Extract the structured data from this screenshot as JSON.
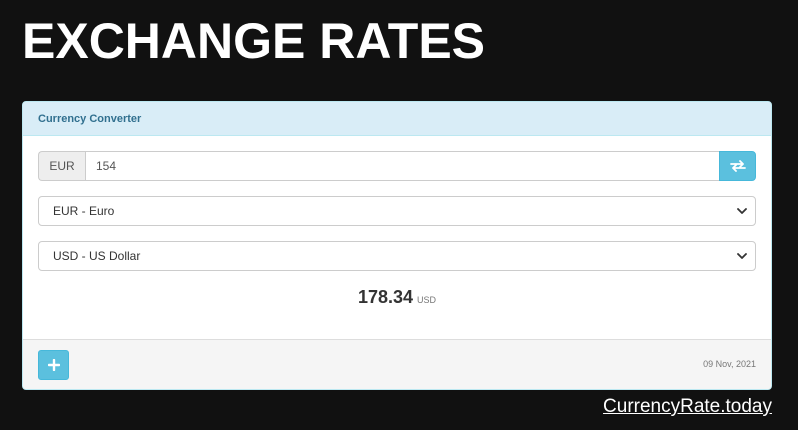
{
  "header": {
    "title": "EXCHANGE RATES"
  },
  "converter": {
    "heading": "Currency Converter",
    "amount_currency_code": "EUR",
    "amount_value": "154",
    "swap_icon": "swap-arrows-icon",
    "from_currency": "EUR - Euro",
    "to_currency": "USD - US Dollar",
    "result_value": "178.34",
    "result_unit": "USD",
    "add_icon": "plus-icon",
    "date": "09 Nov, 2021"
  },
  "footer": {
    "brand": "CurrencyRate.today"
  },
  "colors": {
    "background": "#111111",
    "accent": "#5bc0de",
    "heading_bg": "#d9edf7",
    "heading_text": "#31708f"
  }
}
